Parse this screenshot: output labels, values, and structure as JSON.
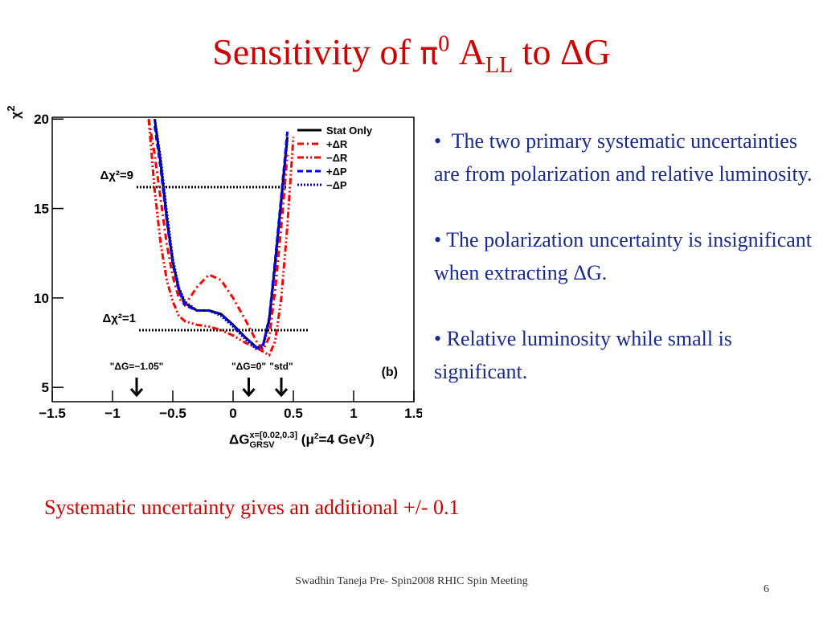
{
  "title": {
    "parts": [
      "Sensitivity of ",
      "π",
      "0",
      " A",
      "LL",
      " to ",
      "ΔG"
    ]
  },
  "chart_data": {
    "type": "line",
    "y_label": [
      "χ",
      "2"
    ],
    "x_label": [
      "ΔG",
      "x=[0.02,0.3]",
      "GRSV",
      " (μ",
      "2",
      "=4 GeV",
      "2",
      ")"
    ],
    "x": [
      -0.7,
      -0.65,
      -0.6,
      -0.55,
      -0.5,
      -0.45,
      -0.4,
      -0.3,
      -0.2,
      -0.1,
      0,
      0.1,
      0.2,
      0.25,
      0.3,
      0.35,
      0.4,
      0.45,
      0.5
    ],
    "series": [
      {
        "name": "Stat Only",
        "color": "#000000",
        "dash": "solid",
        "values": [
          null,
          20,
          17.5,
          14.5,
          12,
          10.5,
          9.7,
          9.3,
          9.3,
          9.1,
          8.5,
          7.8,
          7.2,
          7.4,
          8.8,
          12,
          15.5,
          19,
          null
        ]
      },
      {
        "name": "+ΔR",
        "color": "#ff0000",
        "dash": "dashdot",
        "values": [
          20,
          18,
          15.5,
          13,
          11.2,
          10,
          9.6,
          10.6,
          11.3,
          11,
          10,
          8.8,
          7.5,
          7.1,
          7.8,
          10.5,
          14,
          18,
          null
        ]
      },
      {
        "name": "−ΔR",
        "color": "#ff0000",
        "dash": "dashdotdot",
        "values": [
          20,
          16,
          13,
          11,
          9.8,
          9.0,
          8.7,
          8.5,
          8.4,
          8.2,
          7.9,
          7.5,
          7.2,
          7.0,
          6.8,
          7.6,
          10,
          14,
          19
        ]
      },
      {
        "name": "+ΔP",
        "color": "#0000ff",
        "dash": "dashed",
        "values": [
          null,
          19.6,
          17.2,
          14.3,
          11.9,
          10.4,
          9.6,
          9.3,
          9.3,
          9.1,
          8.5,
          7.8,
          7.2,
          7.4,
          8.9,
          12.2,
          15.7,
          19.3,
          null
        ]
      },
      {
        "name": "−ΔP",
        "color": "#0000cc",
        "dash": "dotted",
        "values": [
          null,
          20,
          17.8,
          14.8,
          12.2,
          10.6,
          9.8,
          9.3,
          9.3,
          9.0,
          8.4,
          7.7,
          7.1,
          7.3,
          8.7,
          11.8,
          15.3,
          18.8,
          null
        ]
      }
    ],
    "xlim": [
      -1.5,
      1.5
    ],
    "ylim": [
      4.2,
      20.1
    ],
    "xticks": [
      {
        "value": -1.5,
        "label": "−1.5"
      },
      {
        "value": -1,
        "label": "−1"
      },
      {
        "value": -0.5,
        "label": "−0.5"
      },
      0,
      0.5,
      1,
      1.5
    ],
    "yticks": [
      5,
      10,
      15,
      20
    ],
    "legend": "top-right",
    "hlines": [
      {
        "y": 16.2,
        "x": [
          -0.8,
          0.45
        ],
        "label": "Δχ²=9"
      },
      {
        "y": 8.2,
        "x": [
          -0.78,
          0.62
        ],
        "label": "Δχ²=1"
      }
    ],
    "arrows": [
      {
        "x": -0.8,
        "label": "\"ΔG=−1.05\""
      },
      {
        "x": 0.13,
        "label": "\"ΔG=0\""
      },
      {
        "x": 0.4,
        "label": "\"std\""
      }
    ],
    "panel_label": "(b)"
  },
  "bullets": [
    "The two primary systematic uncertainties are from polarization and relative luminosity.",
    "The polarization uncertainty is insignificant  when  extracting ΔG.",
    "Relative luminosity while small is significant."
  ],
  "note": "Systematic  uncertainty gives an additional  +/- 0.1",
  "footer": "Swadhin Taneja  Pre- Spin2008  RHIC Spin Meeting",
  "page_number": "6"
}
